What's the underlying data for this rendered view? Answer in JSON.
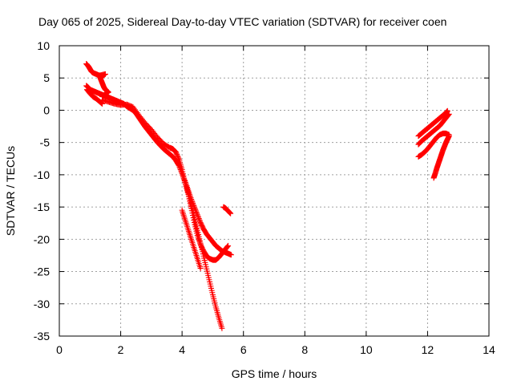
{
  "chart_data": {
    "type": "scatter",
    "title": "Day 065 of 2025, Sidereal Day-to-day VTEC variation (SDTVAR) for receiver coen",
    "xlabel": "GPS time / hours",
    "ylabel": "SDTVAR / TECUs",
    "xlim": [
      0,
      14
    ],
    "ylim": [
      -35,
      10
    ],
    "xticks": [
      "0",
      "2",
      "4",
      "6",
      "8",
      "10",
      "12",
      "14"
    ],
    "yticks": [
      "10",
      "5",
      "0",
      "-5",
      "-10",
      "-15",
      "-20",
      "-25",
      "-30",
      "-35"
    ],
    "grid": true,
    "marker": "plus",
    "color": "#ff0000",
    "series": [
      {
        "x": [
          0.88,
          0.95,
          1.0,
          1.05,
          1.1,
          1.2,
          1.3,
          1.4,
          1.5,
          1.3,
          1.35,
          1.4,
          1.45,
          1.5,
          1.55,
          1.6,
          1.5,
          1.45,
          1.4
        ],
        "y": [
          7.2,
          6.8,
          6.4,
          6.0,
          5.8,
          5.6,
          5.4,
          5.3,
          5.6,
          5.4,
          4.8,
          4.2,
          3.6,
          3.2,
          3.0,
          2.8,
          2.5,
          2.3,
          2.1
        ]
      },
      {
        "x": [
          0.88,
          0.95,
          1.0,
          1.1,
          1.2,
          1.3,
          1.4,
          1.5,
          1.6,
          1.7,
          1.8,
          1.9,
          2.0,
          2.1,
          2.2,
          2.3,
          2.4,
          2.5,
          2.6,
          2.7,
          2.8,
          2.9,
          3.0,
          3.1,
          3.2,
          3.3,
          3.4,
          3.5,
          3.6,
          3.7,
          3.8,
          3.9,
          4.0,
          4.1,
          4.2,
          4.3,
          4.4,
          4.5,
          4.6,
          4.7,
          4.8,
          4.9,
          5.0,
          5.1,
          5.2,
          5.3
        ],
        "y": [
          3.8,
          3.5,
          3.2,
          3.0,
          2.8,
          2.6,
          2.4,
          2.2,
          2.0,
          1.8,
          1.6,
          1.4,
          1.2,
          1.0,
          0.6,
          0.3,
          0.0,
          -0.5,
          -1.2,
          -1.9,
          -2.6,
          -3.2,
          -3.8,
          -4.4,
          -5.0,
          -5.5,
          -6.0,
          -6.4,
          -6.8,
          -7.2,
          -7.8,
          -8.6,
          -9.8,
          -11.2,
          -12.8,
          -14.6,
          -16.6,
          -18.6,
          -20.6,
          -22.6,
          -24.6,
          -26.6,
          -28.6,
          -30.5,
          -32.2,
          -33.8
        ]
      },
      {
        "x": [
          0.9,
          1.0,
          1.1,
          1.2,
          1.3,
          1.4
        ],
        "y": [
          3.2,
          2.6,
          2.1,
          1.8,
          1.4,
          1.0
        ]
      },
      {
        "x": [
          1.4,
          1.6,
          1.8,
          2.0,
          2.2,
          2.4,
          2.6,
          2.8,
          3.0,
          3.2,
          3.4,
          3.6,
          3.7,
          3.8,
          3.9,
          4.0,
          4.1,
          4.2,
          4.3,
          4.4,
          4.5,
          4.6,
          4.7,
          4.8,
          4.9,
          5.0,
          5.1,
          5.2,
          5.3,
          5.4,
          5.5
        ],
        "y": [
          1.6,
          1.3,
          1.0,
          0.8,
          0.9,
          0.5,
          -0.8,
          -2.0,
          -3.0,
          -4.2,
          -5.2,
          -5.8,
          -6.0,
          -6.5,
          -7.6,
          -9.2,
          -11.2,
          -13.0,
          -15.2,
          -17.4,
          -19.4,
          -20.8,
          -21.8,
          -22.6,
          -23.0,
          -23.2,
          -23.2,
          -22.8,
          -22.2,
          -21.6,
          -21.0
        ]
      },
      {
        "x": [
          4.1,
          4.2,
          4.3,
          4.4,
          4.5,
          4.6,
          4.7,
          4.8,
          4.9,
          5.0,
          5.1,
          5.2,
          5.3,
          5.4,
          5.5,
          5.6
        ],
        "y": [
          -11.0,
          -12.4,
          -13.8,
          -15.0,
          -16.2,
          -17.4,
          -18.4,
          -19.2,
          -19.8,
          -20.4,
          -21.0,
          -21.4,
          -21.8,
          -22.0,
          -22.2,
          -22.4
        ]
      },
      {
        "x": [
          4.0,
          4.1,
          4.2,
          4.3,
          4.4,
          4.5,
          4.6
        ],
        "y": [
          -15.5,
          -17.0,
          -18.5,
          -20.0,
          -21.5,
          -23.0,
          -24.5
        ]
      },
      {
        "x": [
          5.35,
          5.42,
          5.5,
          5.58
        ],
        "y": [
          -15.0,
          -15.2,
          -15.6,
          -16.0
        ]
      },
      {
        "x": [
          11.7,
          11.8,
          11.9,
          12.0,
          12.1,
          12.2,
          12.3,
          12.4,
          12.5,
          12.6,
          12.65
        ],
        "y": [
          -4.0,
          -3.6,
          -3.2,
          -2.8,
          -2.4,
          -2.0,
          -1.6,
          -1.2,
          -0.8,
          -0.4,
          -0.1
        ]
      },
      {
        "x": [
          11.7,
          11.8,
          11.9,
          12.0,
          12.1,
          12.2,
          12.3,
          12.4,
          12.5,
          12.6,
          12.7
        ],
        "y": [
          -5.3,
          -4.8,
          -4.4,
          -4.0,
          -3.6,
          -3.2,
          -2.8,
          -2.4,
          -1.8,
          -1.2,
          -0.6
        ]
      },
      {
        "x": [
          11.7,
          11.8,
          11.9,
          12.0,
          12.1,
          12.2,
          12.3,
          12.4,
          12.5,
          12.6,
          12.7
        ],
        "y": [
          -7.2,
          -6.9,
          -6.5,
          -6.0,
          -5.4,
          -4.8,
          -4.2,
          -3.8,
          -3.6,
          -3.6,
          -3.8
        ]
      },
      {
        "x": [
          12.2,
          12.25,
          12.3,
          12.35,
          12.4,
          12.45,
          12.5,
          12.55,
          12.6,
          12.65,
          12.7
        ],
        "y": [
          -10.5,
          -9.8,
          -9.0,
          -8.3,
          -7.6,
          -6.9,
          -6.2,
          -5.6,
          -5.0,
          -4.5,
          -4.0
        ]
      }
    ]
  }
}
